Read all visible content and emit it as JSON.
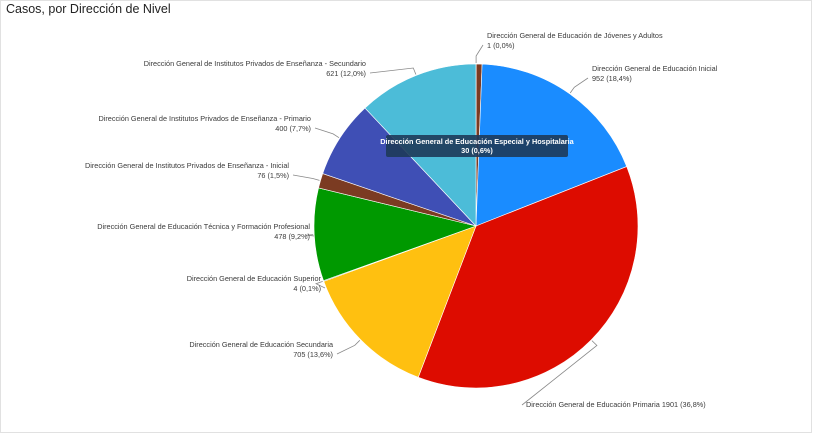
{
  "title": "Casos, por Dirección de Nivel",
  "chart_data": {
    "type": "pie",
    "title": "Casos, por Dirección de Nivel",
    "slices": [
      {
        "name": "Dirección General de Educación de Jóvenes y Adultos",
        "value": 1,
        "pct": "0,0%",
        "label": "1 (0,0%)",
        "color": "#7a7a7a"
      },
      {
        "name": "Dirección General de Educación Especial y Hospitalaria",
        "value": 30,
        "pct": "0,6%",
        "label": "30 (0,6%)",
        "color": "#7b3b22"
      },
      {
        "name": "Dirección General de Educación Inicial",
        "value": 952,
        "pct": "18,4%",
        "label": "952 (18,4%)",
        "color": "#1a8cff"
      },
      {
        "name": "Dirección General de Educación Primaria",
        "value": 1901,
        "pct": "36,8%",
        "label": "1901 (36,8%)",
        "color": "#dd0c00"
      },
      {
        "name": "Dirección General de Educación Secundaria",
        "value": 705,
        "pct": "13,6%",
        "label": "705 (13,6%)",
        "color": "#ffc010"
      },
      {
        "name": "Dirección General de Educación Superior",
        "value": 4,
        "pct": "0,1%",
        "label": "4 (0,1%)",
        "color": "#2f6e2f"
      },
      {
        "name": "Dirección General de Educación Técnica y Formación Profesional",
        "value": 478,
        "pct": "9,2%",
        "label": "478 (9,2%)",
        "color": "#009900"
      },
      {
        "name": "Dirección General de Institutos Privados de Enseñanza - Inicial",
        "value": 76,
        "pct": "1,5%",
        "label": "76 (1,5%)",
        "color": "#7b3b22"
      },
      {
        "name": "Dirección General de Institutos Privados de Enseñanza - Primario",
        "value": 400,
        "pct": "7,7%",
        "label": "400 (7,7%)",
        "color": "#3f4fb5"
      },
      {
        "name": "Dirección General de Institutos Privados de Enseñanza - Secundario",
        "value": 621,
        "pct": "12,0%",
        "label": "621 (12,0%)",
        "color": "#4cbcd8"
      }
    ],
    "tooltip": {
      "name": "Dirección General de Educación Especial y Hospitalaria",
      "value_label": "30 (0,6%)"
    }
  }
}
